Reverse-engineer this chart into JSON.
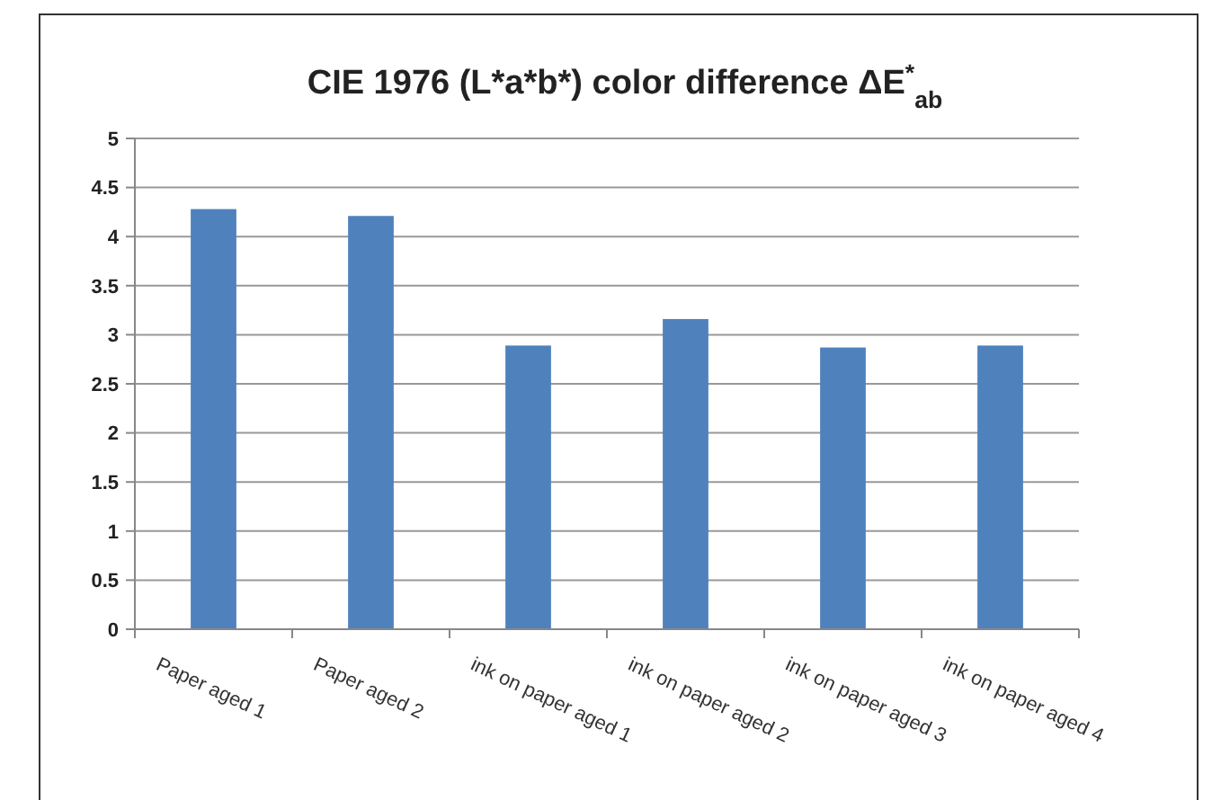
{
  "chart_data": {
    "type": "bar",
    "title": "CIE 1976 (L*a*b*) color difference ΔE$^{*}$$_{ab}$",
    "categories": [
      "Paper aged 1",
      "Paper aged 2",
      "ink on paper aged 1",
      "ink on paper aged 2",
      "ink on paper aged 3",
      "ink on paper aged 4"
    ],
    "values": [
      4.28,
      4.21,
      2.89,
      3.16,
      2.87,
      2.89
    ],
    "color": "#4f81bd",
    "ylim": [
      0,
      5
    ],
    "yticks": [
      0,
      0.5,
      1,
      1.5,
      2,
      2.5,
      3,
      3.5,
      4,
      4.5,
      5
    ],
    "grid": "y"
  }
}
